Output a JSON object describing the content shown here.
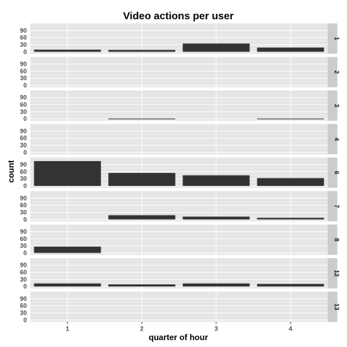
{
  "chart_data": {
    "type": "bar",
    "title": "Video actions per user",
    "xlabel": "quarter of hour",
    "ylabel": "count",
    "categories": [
      "1",
      "2",
      "3",
      "4"
    ],
    "yticks": [
      "0",
      "30",
      "60",
      "90"
    ],
    "ylim": [
      -8,
      120
    ],
    "grid": true,
    "facets": [
      {
        "label": "1",
        "values": [
          9,
          8,
          35,
          18
        ]
      },
      {
        "label": "2",
        "values": [
          0,
          0,
          0,
          0
        ]
      },
      {
        "label": "3",
        "values": [
          0,
          1,
          0,
          1
        ]
      },
      {
        "label": "4",
        "values": [
          0,
          0,
          0,
          0
        ]
      },
      {
        "label": "6",
        "values": [
          105,
          55,
          45,
          33
        ]
      },
      {
        "label": "7",
        "values": [
          0,
          18,
          12,
          7
        ]
      },
      {
        "label": "8",
        "values": [
          27,
          0,
          0,
          0
        ]
      },
      {
        "label": "12",
        "values": [
          13,
          9,
          13,
          11
        ]
      },
      {
        "label": "13",
        "values": [
          0,
          0,
          0,
          0
        ]
      }
    ]
  },
  "colors": {
    "panel_bg": "#e5e5e5",
    "grid_major": "#ffffff",
    "grid_minor": "#f2f2f2",
    "bar": "#333333",
    "strip_bg": "#cccccc"
  }
}
